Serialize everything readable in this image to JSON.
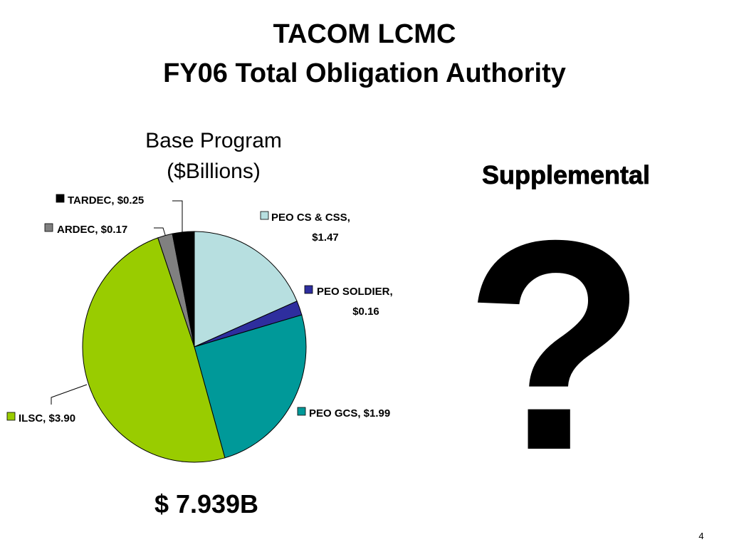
{
  "title": [
    "TACOM LCMC",
    "FY06 Total Obligation Authority"
  ],
  "chart_data": {
    "type": "pie",
    "title": [
      "Base Program",
      "($Billions)"
    ],
    "values": [
      1.47,
      0.16,
      1.99,
      3.9,
      0.17,
      0.25
    ],
    "value_labels": [
      "PEO CS & CSS,\n$1.47",
      "PEO SOLDIER,\n$0.16",
      "PEO GCS, $1.99",
      "ILSC, $3.90",
      "ARDEC, $0.17",
      "TARDEC, $0.25"
    ],
    "colors": [
      "#b7dfe0",
      "#2e2e9e",
      "#009999",
      "#99cc00",
      "#808080",
      "#000000"
    ]
  },
  "total": "$ 7.939B",
  "supplemental": "Supplemental",
  "question_mark": "?",
  "page_number": "4"
}
